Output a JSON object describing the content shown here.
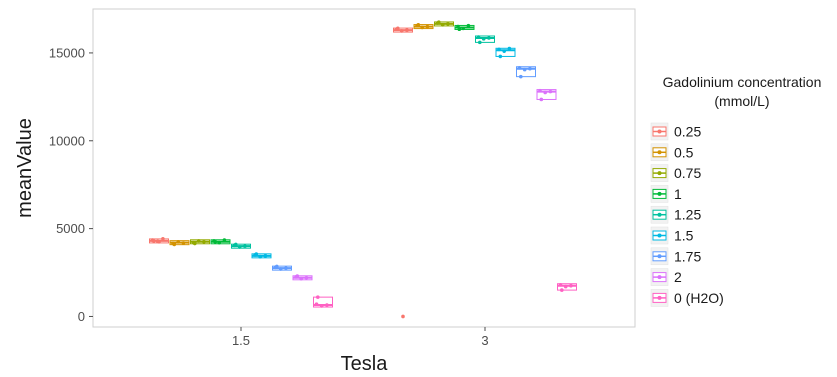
{
  "chart_data": {
    "type": "box",
    "xlabel": "Tesla",
    "ylabel": "meanValue",
    "x_categories": [
      "1.5",
      "3"
    ],
    "y_ticks": [
      0,
      5000,
      10000,
      15000
    ],
    "y_tick_labels": [
      "0",
      "5000",
      "10000",
      "15000"
    ],
    "ylim": [
      -600,
      17500
    ],
    "grid": false,
    "legend": {
      "title_lines": [
        "Gadolinium concentration",
        "(mmol/L)"
      ],
      "placement": "right",
      "entries": [
        {
          "label": "0.25",
          "color": "#F8766D"
        },
        {
          "label": "0.5",
          "color": "#D39200"
        },
        {
          "label": "0.75",
          "color": "#93AA00"
        },
        {
          "label": "1",
          "color": "#00BA38"
        },
        {
          "label": "1.25",
          "color": "#00C19F"
        },
        {
          "label": "1.5",
          "color": "#00B9E3"
        },
        {
          "label": "1.75",
          "color": "#619CFF"
        },
        {
          "label": "2",
          "color": "#DB72FB"
        },
        {
          "label": "0 (H2O)",
          "color": "#FF61C3"
        }
      ]
    },
    "series": [
      {
        "name": "0.25",
        "groups": [
          {
            "x": "1.5",
            "median": 4300,
            "points": [
              4350,
              4280,
              4420,
              4300,
              4250
            ]
          },
          {
            "x": "3",
            "median": 16300,
            "points": [
              16350,
              16250,
              16300,
              16400,
              0
            ]
          }
        ]
      },
      {
        "name": "0.5",
        "groups": [
          {
            "x": "1.5",
            "median": 4200,
            "points": [
              4150,
              4250,
              4180,
              4100
            ]
          },
          {
            "x": "3",
            "median": 16500,
            "points": [
              16550,
              16450,
              16500,
              16600
            ]
          }
        ]
      },
      {
        "name": "0.75",
        "groups": [
          {
            "x": "1.5",
            "median": 4250,
            "points": [
              4200,
              4300,
              4250,
              4150
            ]
          },
          {
            "x": "3",
            "median": 16650,
            "points": [
              16700,
              16600,
              16650,
              16750
            ]
          }
        ]
      },
      {
        "name": "1",
        "groups": [
          {
            "x": "1.5",
            "median": 4250,
            "points": [
              4300,
              4200,
              4350,
              4250
            ]
          },
          {
            "x": "3",
            "median": 16450,
            "points": [
              16500,
              16400,
              16550,
              16350
            ]
          }
        ]
      },
      {
        "name": "1.25",
        "groups": [
          {
            "x": "1.5",
            "median": 4000,
            "points": [
              4050,
              3950,
              4000,
              4100
            ]
          },
          {
            "x": "3",
            "median": 15850,
            "points": [
              15900,
              15800,
              15850,
              15600
            ]
          }
        ]
      },
      {
        "name": "1.5",
        "groups": [
          {
            "x": "1.5",
            "median": 3450,
            "points": [
              3500,
              3400,
              3450,
              3550
            ]
          },
          {
            "x": "3",
            "median": 15150,
            "points": [
              15200,
              15100,
              15250,
              14800
            ]
          }
        ]
      },
      {
        "name": "1.75",
        "groups": [
          {
            "x": "1.5",
            "median": 2750,
            "points": [
              2800,
              2700,
              2750,
              2850
            ]
          },
          {
            "x": "3",
            "median": 14100,
            "points": [
              14150,
              14050,
              14100,
              13650
            ]
          }
        ]
      },
      {
        "name": "2",
        "groups": [
          {
            "x": "1.5",
            "median": 2200,
            "points": [
              2250,
              2150,
              2200,
              2300
            ]
          },
          {
            "x": "3",
            "median": 12800,
            "points": [
              12850,
              12750,
              12800,
              12350
            ]
          }
        ]
      },
      {
        "name": "0 (H2O)",
        "groups": [
          {
            "x": "1.5",
            "median": 650,
            "points": [
              700,
              600,
              650,
              1100
            ]
          },
          {
            "x": "3",
            "median": 1750,
            "points": [
              1800,
              1700,
              1750,
              1500
            ]
          }
        ]
      }
    ]
  }
}
